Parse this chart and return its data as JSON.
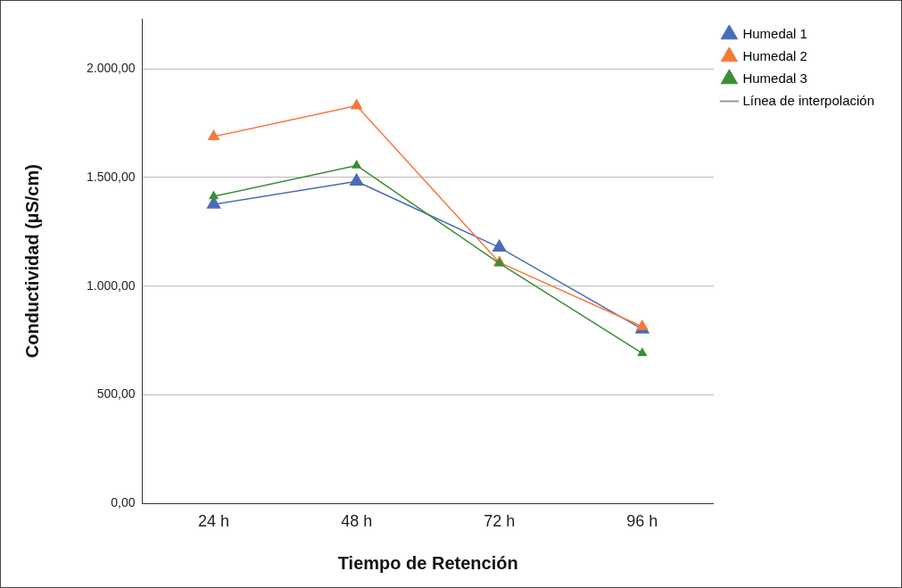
{
  "chart_data": {
    "type": "line",
    "xlabel": "Tiempo de Retención",
    "ylabel": "Conductividad (µS/cm)",
    "categories": [
      "24 h",
      "48 h",
      "72 h",
      "96 h"
    ],
    "series": [
      {
        "name": "Humedal 1",
        "color": "#4a6cb8",
        "values": [
          1376,
          1482,
          1178,
          802
        ]
      },
      {
        "name": "Humedal 2",
        "color": "#f47a3c",
        "values": [
          1688,
          1830,
          1109,
          814
        ]
      },
      {
        "name": "Humedal 3",
        "color": "#3a8e33",
        "values": [
          1413,
          1555,
          1105,
          692
        ]
      }
    ],
    "ylim": [
      0,
      2230
    ],
    "yticks": [
      {
        "value": 0,
        "label": "0,00"
      },
      {
        "value": 500,
        "label": "500,00"
      },
      {
        "value": 1000,
        "label": "1.000,00"
      },
      {
        "value": 1500,
        "label": "1.500,00"
      },
      {
        "value": 2000,
        "label": "2.000,00"
      }
    ],
    "grid": "y",
    "legend": "top right",
    "marker": "triangle",
    "line_style": "solid",
    "annotations": [
      "Línea de interpolación"
    ]
  }
}
